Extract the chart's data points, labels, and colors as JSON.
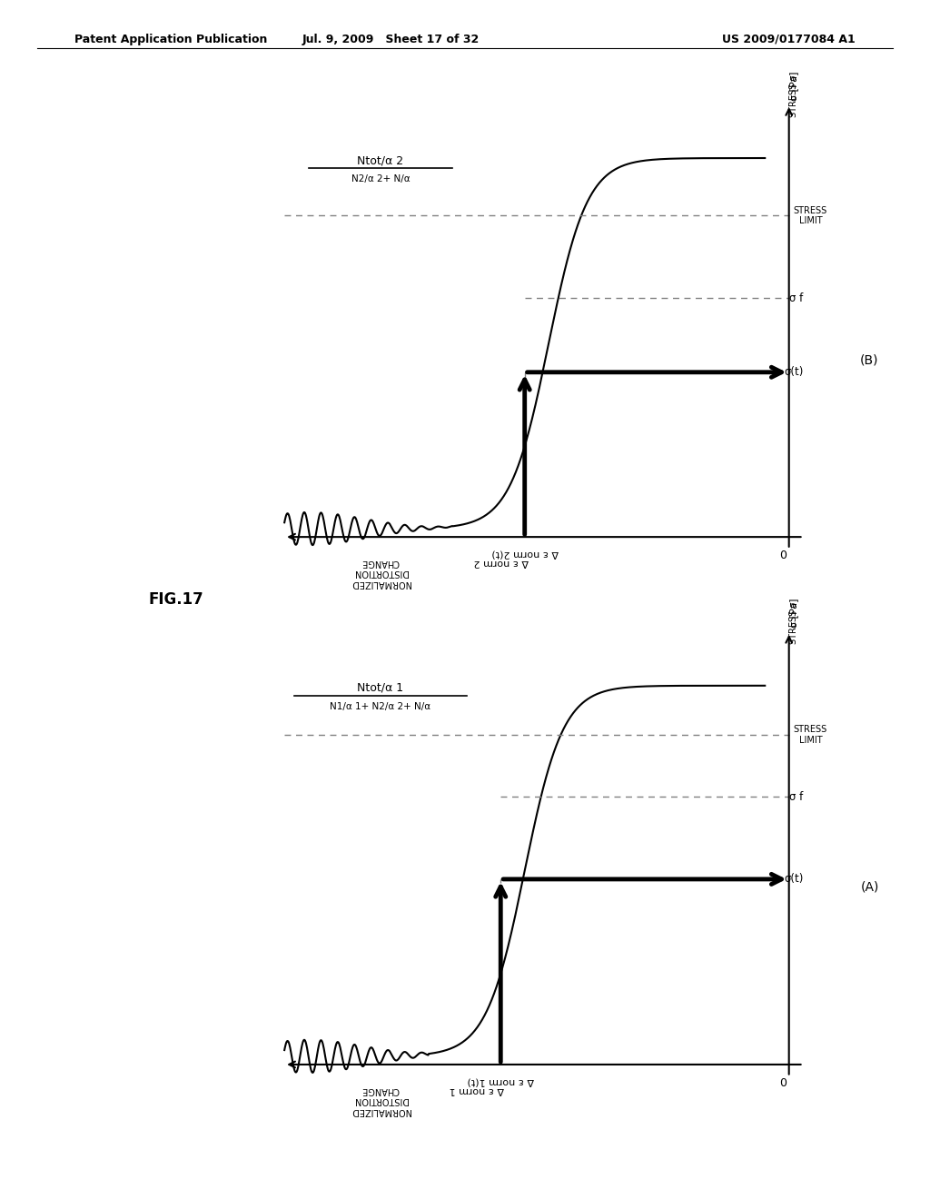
{
  "header_left": "Patent Application Publication",
  "header_center": "Jul. 9, 2009   Sheet 17 of 32",
  "header_right": "US 2009/0177084 A1",
  "fig_label": "FIG.17",
  "panel_A_label": "(A)",
  "panel_B_label": "(B)",
  "background_color": "#ffffff"
}
